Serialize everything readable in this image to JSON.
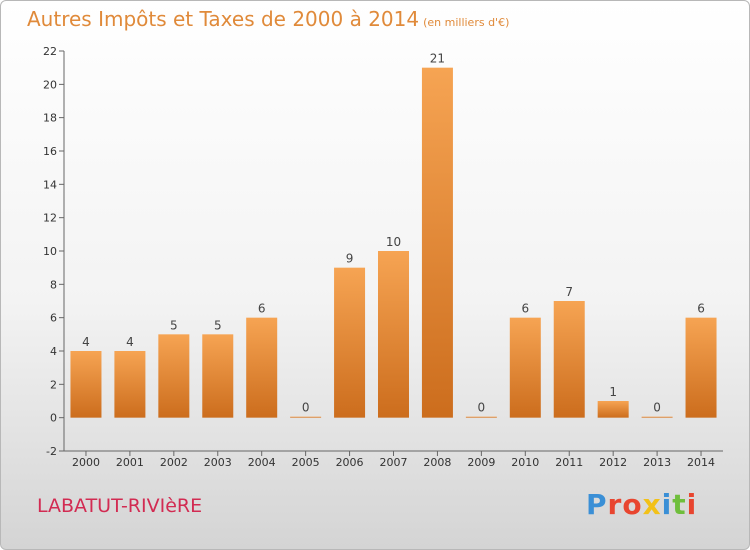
{
  "chart_data": {
    "type": "bar",
    "title": "Autres Impôts et Taxes de 2000 à 2014",
    "unit_note": "(en milliers d'€)",
    "location": "LABATUT-RIVIèRE",
    "logo": "Proxiti",
    "categories": [
      "2000",
      "2001",
      "2002",
      "2003",
      "2004",
      "2005",
      "2006",
      "2007",
      "2008",
      "2009",
      "2010",
      "2011",
      "2012",
      "2013",
      "2014"
    ],
    "values": [
      4,
      4,
      5,
      5,
      6,
      0,
      9,
      10,
      21,
      0,
      6,
      7,
      1,
      0,
      6
    ],
    "ylim": [
      -2,
      22
    ],
    "yticks": [
      -2,
      0,
      2,
      4,
      6,
      8,
      10,
      12,
      14,
      16,
      18,
      20,
      22
    ],
    "grid": false,
    "colors": {
      "bar_top": "#f6a453",
      "bar_bottom": "#cc6d1d",
      "title": "#e08a3a",
      "location": "#d22b52",
      "logo": [
        "#3a8fd6",
        "#e8452f",
        "#e8452f",
        "#f2c118",
        "#3a8fd6",
        "#6fbe3c",
        "#e8452f"
      ]
    }
  }
}
